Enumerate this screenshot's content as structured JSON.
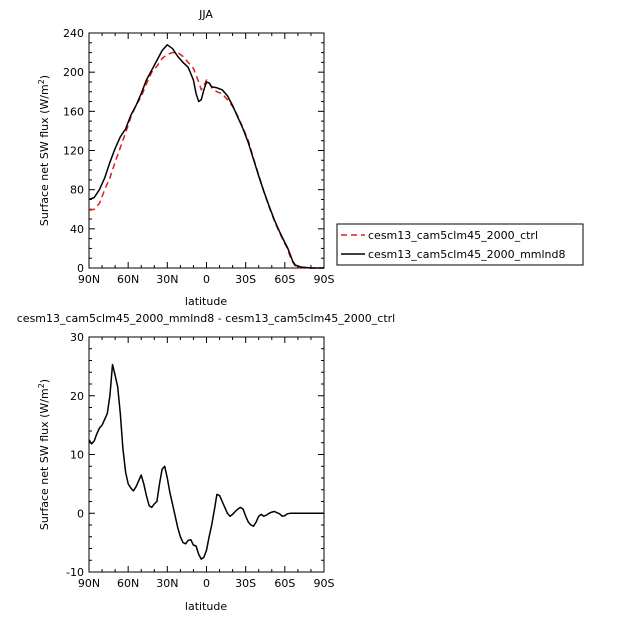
{
  "chart_data": [
    {
      "type": "line",
      "title": "JJA",
      "xlabel": "latitude",
      "ylabel": "Surface net SW flux (W/m²)",
      "ylabel_parts": [
        "Surface net SW flux (W/m",
        "2",
        ")"
      ],
      "xlim": [
        90,
        -90
      ],
      "ylim": [
        0,
        240
      ],
      "x_ticks": [
        {
          "value": 90,
          "label": "90N"
        },
        {
          "value": 60,
          "label": "60N"
        },
        {
          "value": 30,
          "label": "30N"
        },
        {
          "value": 0,
          "label": "0"
        },
        {
          "value": -30,
          "label": "30S"
        },
        {
          "value": -60,
          "label": "60S"
        },
        {
          "value": -90,
          "label": "90S"
        }
      ],
      "y_ticks": [
        0,
        40,
        80,
        120,
        160,
        200,
        240
      ],
      "legend_position": "right",
      "series": [
        {
          "name": "cesm13_cam5clm45_2000_ctrl",
          "color": "#e41a1c",
          "dash": "dashed",
          "points": [
            [
              90,
              59
            ],
            [
              86,
              60
            ],
            [
              82,
              66
            ],
            [
              78,
              80
            ],
            [
              74,
              92
            ],
            [
              70,
              108
            ],
            [
              66,
              123
            ],
            [
              62,
              138
            ],
            [
              58,
              154
            ],
            [
              54,
              166
            ],
            [
              50,
              175
            ],
            [
              46,
              188
            ],
            [
              42,
              200
            ],
            [
              38,
              206
            ],
            [
              34,
              214
            ],
            [
              30,
              218
            ],
            [
              26,
              220
            ],
            [
              22,
              220
            ],
            [
              18,
              216
            ],
            [
              14,
              210
            ],
            [
              10,
              204
            ],
            [
              6,
              190
            ],
            [
              4,
              182
            ],
            [
              2,
              186
            ],
            [
              0,
              192
            ],
            [
              -2,
              190
            ],
            [
              -4,
              184
            ],
            [
              -8,
              180
            ],
            [
              -12,
              178
            ],
            [
              -16,
              172
            ],
            [
              -20,
              165
            ],
            [
              -24,
              155
            ],
            [
              -28,
              143
            ],
            [
              -32,
              130
            ],
            [
              -36,
              112
            ],
            [
              -40,
              95
            ],
            [
              -44,
              78
            ],
            [
              -48,
              62
            ],
            [
              -52,
              48
            ],
            [
              -56,
              36
            ],
            [
              -60,
              25
            ],
            [
              -62,
              20
            ],
            [
              -64,
              12
            ],
            [
              -66,
              6
            ],
            [
              -68,
              2
            ],
            [
              -72,
              0
            ],
            [
              -80,
              0
            ],
            [
              -90,
              0
            ]
          ]
        },
        {
          "name": "cesm13_cam5clm45_2000_mmlnd8",
          "color": "#000000",
          "dash": "solid",
          "points": [
            [
              90,
              70
            ],
            [
              86,
              72
            ],
            [
              82,
              80
            ],
            [
              78,
              92
            ],
            [
              74,
              108
            ],
            [
              70,
              122
            ],
            [
              66,
              134
            ],
            [
              62,
              142
            ],
            [
              58,
              156
            ],
            [
              54,
              166
            ],
            [
              50,
              178
            ],
            [
              46,
              192
            ],
            [
              42,
              202
            ],
            [
              38,
              212
            ],
            [
              34,
              222
            ],
            [
              30,
              228
            ],
            [
              26,
              224
            ],
            [
              22,
              216
            ],
            [
              18,
              210
            ],
            [
              14,
              205
            ],
            [
              10,
              192
            ],
            [
              8,
              178
            ],
            [
              6,
              170
            ],
            [
              4,
              172
            ],
            [
              2,
              182
            ],
            [
              0,
              190
            ],
            [
              -2,
              189
            ],
            [
              -4,
              185
            ],
            [
              -8,
              184
            ],
            [
              -12,
              182
            ],
            [
              -16,
              176
            ],
            [
              -20,
              166
            ],
            [
              -24,
              154
            ],
            [
              -28,
              142
            ],
            [
              -32,
              128
            ],
            [
              -36,
              111
            ],
            [
              -40,
              94
            ],
            [
              -44,
              78
            ],
            [
              -48,
              63
            ],
            [
              -52,
              49
            ],
            [
              -56,
              37
            ],
            [
              -60,
              26
            ],
            [
              -62,
              21
            ],
            [
              -64,
              14
            ],
            [
              -66,
              7
            ],
            [
              -68,
              3
            ],
            [
              -72,
              1
            ],
            [
              -80,
              0
            ],
            [
              -90,
              0
            ]
          ]
        }
      ]
    },
    {
      "type": "line",
      "title": "cesm13_cam5clm45_2000_mmlnd8 - cesm13_cam5clm45_2000_ctrl",
      "xlabel": "latitude",
      "ylabel": "Surface net SW flux (W/m²)",
      "ylabel_parts": [
        "Surface net SW flux (W/m",
        "2",
        ")"
      ],
      "xlim": [
        90,
        -90
      ],
      "ylim": [
        -10,
        30
      ],
      "x_ticks": [
        {
          "value": 90,
          "label": "90N"
        },
        {
          "value": 60,
          "label": "60N"
        },
        {
          "value": 30,
          "label": "30N"
        },
        {
          "value": 0,
          "label": "0"
        },
        {
          "value": -30,
          "label": "30S"
        },
        {
          "value": -60,
          "label": "60S"
        },
        {
          "value": -90,
          "label": "90S"
        }
      ],
      "y_ticks": [
        -10,
        0,
        10,
        20,
        30
      ],
      "series": [
        {
          "color": "#000000",
          "dash": "solid",
          "points": [
            [
              90,
              12.5
            ],
            [
              88,
              11.8
            ],
            [
              86,
              12.3
            ],
            [
              84,
              13.5
            ],
            [
              82,
              14.5
            ],
            [
              80,
              15
            ],
            [
              78,
              16
            ],
            [
              76,
              17
            ],
            [
              74,
              20
            ],
            [
              72,
              25.3
            ],
            [
              70,
              23.5
            ],
            [
              68,
              21.5
            ],
            [
              66,
              17
            ],
            [
              64,
              11
            ],
            [
              62,
              7
            ],
            [
              60,
              5
            ],
            [
              58,
              4.3
            ],
            [
              56,
              3.8
            ],
            [
              54,
              4.5
            ],
            [
              52,
              5.5
            ],
            [
              50,
              6.5
            ],
            [
              48,
              5
            ],
            [
              46,
              3
            ],
            [
              44,
              1.3
            ],
            [
              42,
              1
            ],
            [
              40,
              1.6
            ],
            [
              38,
              2
            ],
            [
              36,
              5
            ],
            [
              34,
              7.5
            ],
            [
              32,
              8
            ],
            [
              30,
              6
            ],
            [
              28,
              3.5
            ],
            [
              26,
              1.5
            ],
            [
              24,
              -0.5
            ],
            [
              22,
              -2.5
            ],
            [
              20,
              -4
            ],
            [
              18,
              -5
            ],
            [
              16,
              -5.2
            ],
            [
              14,
              -4.6
            ],
            [
              12,
              -4.5
            ],
            [
              10,
              -5.4
            ],
            [
              8,
              -5.6
            ],
            [
              6,
              -7
            ],
            [
              4,
              -7.8
            ],
            [
              2,
              -7.5
            ],
            [
              0,
              -6.3
            ],
            [
              -2,
              -4
            ],
            [
              -4,
              -2
            ],
            [
              -6,
              0.5
            ],
            [
              -8,
              3.2
            ],
            [
              -10,
              3
            ],
            [
              -12,
              2
            ],
            [
              -14,
              1
            ],
            [
              -16,
              0
            ],
            [
              -18,
              -0.5
            ],
            [
              -20,
              -0.2
            ],
            [
              -22,
              0.3
            ],
            [
              -24,
              0.7
            ],
            [
              -26,
              1
            ],
            [
              -28,
              0.7
            ],
            [
              -30,
              -0.5
            ],
            [
              -32,
              -1.5
            ],
            [
              -34,
              -2
            ],
            [
              -36,
              -2.2
            ],
            [
              -38,
              -1.5
            ],
            [
              -40,
              -0.5
            ],
            [
              -42,
              -0.2
            ],
            [
              -44,
              -0.5
            ],
            [
              -46,
              -0.3
            ],
            [
              -48,
              0
            ],
            [
              -50,
              0.2
            ],
            [
              -52,
              0.3
            ],
            [
              -54,
              0.1
            ],
            [
              -56,
              -0.1
            ],
            [
              -58,
              -0.5
            ],
            [
              -60,
              -0.4
            ],
            [
              -62,
              -0.1
            ],
            [
              -64,
              0
            ],
            [
              -66,
              0
            ],
            [
              -70,
              0
            ],
            [
              -80,
              0
            ],
            [
              -90,
              0
            ]
          ]
        }
      ]
    }
  ]
}
